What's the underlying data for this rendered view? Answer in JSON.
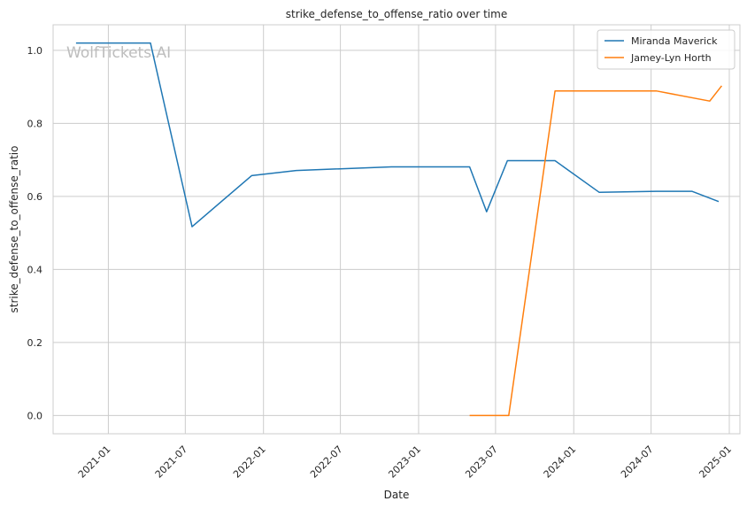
{
  "chart_data": {
    "type": "line",
    "title": "strike_defense_to_offense_ratio over time",
    "xlabel": "Date",
    "ylabel": "strike_defense_to_offense_ratio",
    "watermark": "WolfTickets.AI",
    "xlim": [
      "2020-08-24",
      "2025-01-26"
    ],
    "ylim": [
      -0.05,
      1.07
    ],
    "x_ticks": [
      "2021-01",
      "2021-07",
      "2022-01",
      "2022-07",
      "2023-01",
      "2023-07",
      "2024-01",
      "2024-07",
      "2025-01"
    ],
    "y_ticks": [
      "0.0",
      "0.2",
      "0.4",
      "0.6",
      "0.8",
      "1.0"
    ],
    "grid": true,
    "legend_position": "top-right",
    "series": [
      {
        "name": "Miranda Maverick",
        "color": "#1f77b4",
        "x": [
          "2020-10-17",
          "2021-04-10",
          "2021-07-17",
          "2021-12-04",
          "2022-03-19",
          "2022-10-29",
          "2023-05-01",
          "2023-06-10",
          "2023-07-29",
          "2023-11-18",
          "2024-03-01",
          "2024-07-13",
          "2024-10-05",
          "2024-12-07"
        ],
        "y": [
          1.02,
          1.02,
          0.517,
          0.657,
          0.671,
          0.681,
          0.681,
          0.558,
          0.698,
          0.698,
          0.611,
          0.614,
          0.614,
          0.586
        ]
      },
      {
        "name": "Jamey-Lyn Horth",
        "color": "#ff7f0e",
        "x": [
          "2023-05-01",
          "2023-08-01",
          "2023-11-18",
          "2024-07-13",
          "2024-11-16",
          "2024-12-14"
        ],
        "y": [
          0.0,
          0.0,
          0.889,
          0.889,
          0.861,
          0.903
        ]
      }
    ]
  }
}
